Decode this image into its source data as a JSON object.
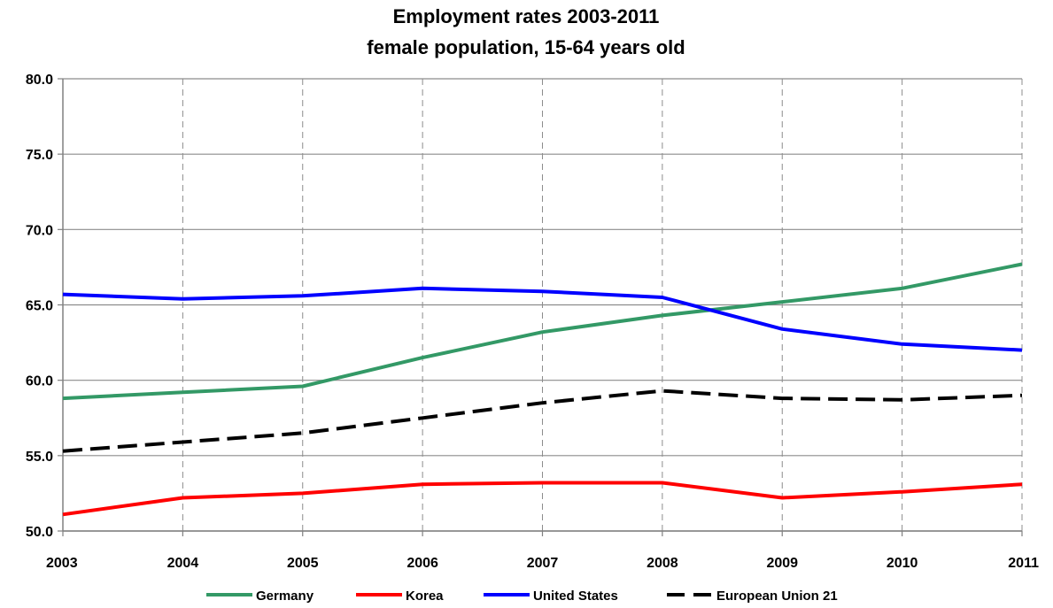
{
  "chart_data": {
    "type": "line",
    "title": "Employment rates 2003-2011",
    "subtitle": "female population, 15-64 years old",
    "xlabel": "",
    "ylabel": "",
    "x": [
      "2003",
      "2004",
      "2005",
      "2006",
      "2007",
      "2008",
      "2009",
      "2010",
      "2011"
    ],
    "ylim": [
      50,
      80
    ],
    "yticks": [
      "50.0",
      "55.0",
      "60.0",
      "65.0",
      "70.0",
      "75.0",
      "80.0"
    ],
    "grid": {
      "horizontal": "solid",
      "vertical": "dashed"
    },
    "legend_position": "bottom",
    "series": [
      {
        "name": "Germany",
        "color": "#339966",
        "dash": "solid",
        "values": [
          58.8,
          59.2,
          59.6,
          61.5,
          63.2,
          64.3,
          65.2,
          66.1,
          67.7
        ]
      },
      {
        "name": "Korea",
        "color": "#ff0000",
        "dash": "solid",
        "values": [
          51.1,
          52.2,
          52.5,
          53.1,
          53.2,
          53.2,
          52.2,
          52.6,
          53.1
        ]
      },
      {
        "name": "United States",
        "color": "#0000ff",
        "dash": "solid",
        "values": [
          65.7,
          65.4,
          65.6,
          66.1,
          65.9,
          65.5,
          63.4,
          62.4,
          62.0
        ]
      },
      {
        "name": "European Union 21",
        "color": "#000000",
        "dash": "dashed",
        "values": [
          55.3,
          55.9,
          56.5,
          57.5,
          58.5,
          59.3,
          58.8,
          58.7,
          59.0
        ]
      }
    ]
  }
}
